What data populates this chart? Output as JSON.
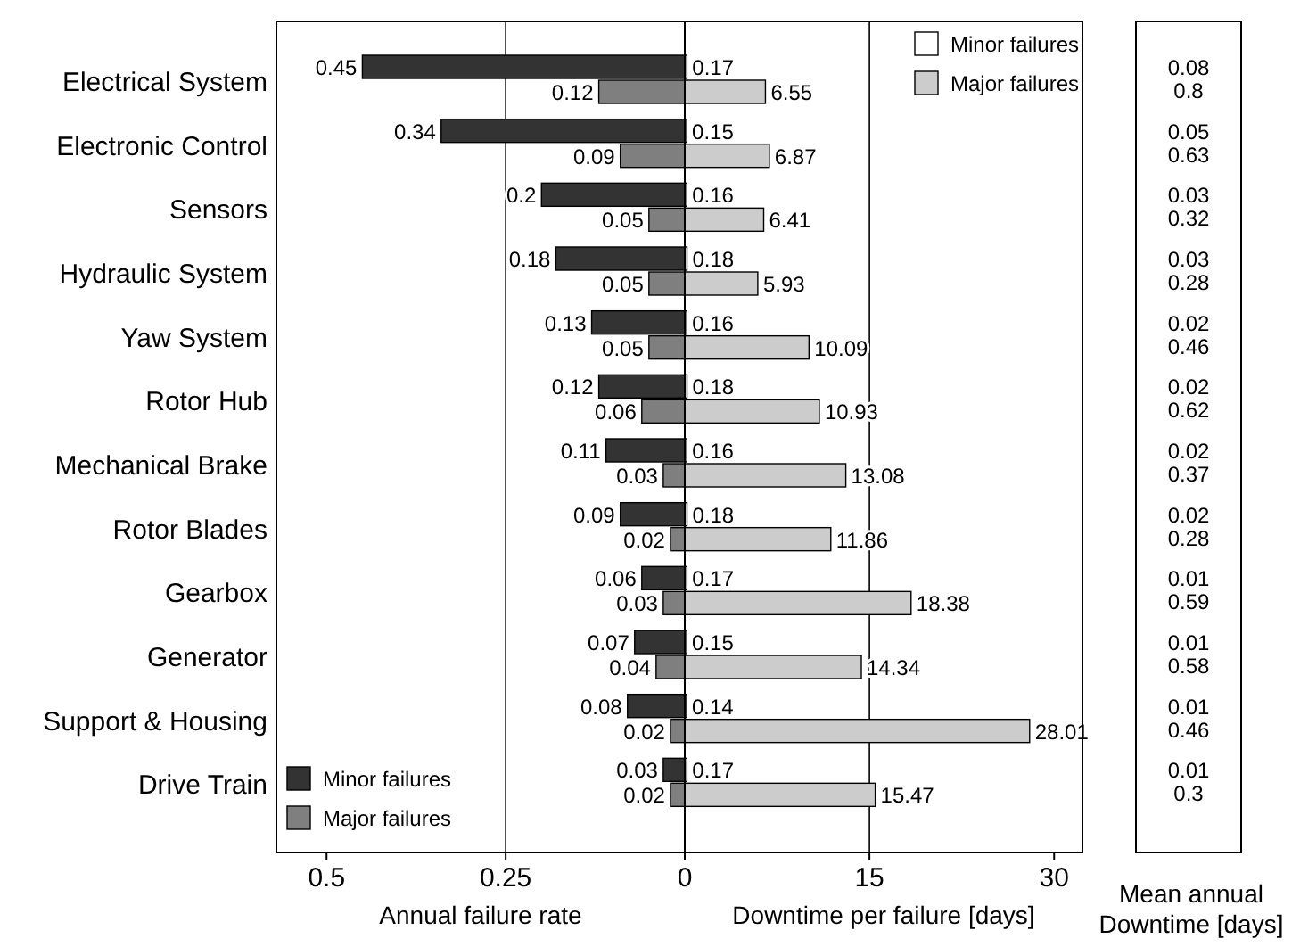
{
  "chart_data": [
    {
      "type": "bar",
      "orientation": "horizontal",
      "xlabel": "Annual failure rate",
      "categories": [
        "Electrical System",
        "Electronic Control",
        "Sensors",
        "Hydraulic System",
        "Yaw System",
        "Rotor Hub",
        "Mechanical Brake",
        "Rotor Blades",
        "Gearbox",
        "Generator",
        "Support & Housing",
        "Drive Train"
      ],
      "series": [
        {
          "name": "Minor failures",
          "color": "#333333",
          "values": [
            0.45,
            0.34,
            0.2,
            0.18,
            0.13,
            0.12,
            0.11,
            0.09,
            0.06,
            0.07,
            0.08,
            0.03
          ]
        },
        {
          "name": "Major failures",
          "color": "#7f7f7f",
          "values": [
            0.12,
            0.09,
            0.05,
            0.05,
            0.05,
            0.06,
            0.03,
            0.02,
            0.03,
            0.04,
            0.02,
            0.02
          ]
        }
      ],
      "xlim": [
        0.57,
        0
      ],
      "xticks": [
        0.5,
        0.25,
        0
      ],
      "ref_lines": [
        {
          "axis": "x",
          "value": 0.25
        }
      ],
      "data_labels": true,
      "legend": "bottom left"
    },
    {
      "type": "bar",
      "orientation": "horizontal",
      "xlabel": "Downtime per failure [days]",
      "series": [
        {
          "name": "Minor failures",
          "color": "#ffffff",
          "values": [
            0.17,
            0.15,
            0.16,
            0.18,
            0.16,
            0.18,
            0.16,
            0.18,
            0.17,
            0.15,
            0.14,
            0.17
          ]
        },
        {
          "name": "Major failures",
          "color": "#cccccc",
          "values": [
            6.55,
            6.87,
            6.41,
            5.93,
            10.09,
            10.93,
            13.08,
            11.86,
            18.38,
            14.34,
            28.01,
            15.47
          ]
        }
      ],
      "xlim": [
        0,
        32.3
      ],
      "xticks": [
        {
          "value": 0,
          "label": null
        },
        15,
        30
      ],
      "ref_lines": [
        {
          "axis": "x",
          "value": 15
        }
      ],
      "data_labels": true,
      "legend": "top right",
      "tick_labels": "x"
    },
    {
      "type": "other",
      "xlabel": "Mean annual\nDowntime [days]",
      "annotations": [
        "0.08",
        "0.8",
        "0.05",
        "0.63",
        "0.03",
        "0.32",
        "0.03",
        "0.28",
        "0.02",
        "0.46",
        "0.02",
        "0.62",
        "0.02",
        "0.37",
        "0.02",
        "0.28",
        "0.01",
        "0.59",
        "0.01",
        "0.58",
        "0.01",
        "0.46",
        "0.01",
        "0.3"
      ]
    }
  ]
}
